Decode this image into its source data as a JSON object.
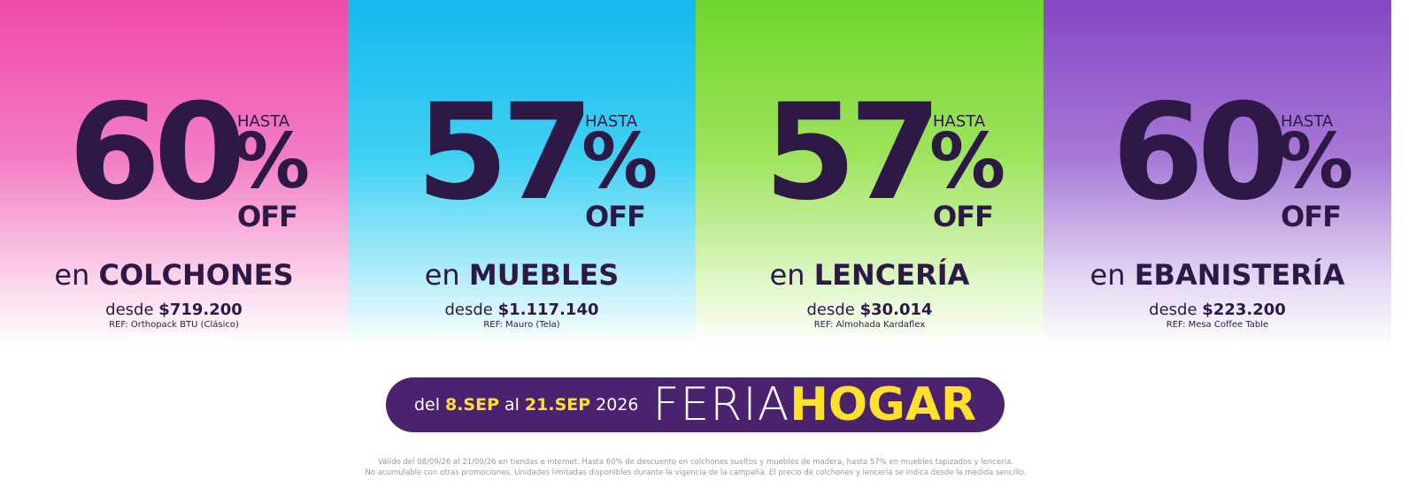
{
  "panels": [
    {
      "hasta": "HASTA",
      "number": "60",
      "percent": "%",
      "off": "OFF",
      "prefix": "en",
      "category": "COLCHONES",
      "desde": "desde",
      "price": "$719.200",
      "ref": "REF: Orthopack BTU (Clásico)"
    },
    {
      "hasta": "HASTA",
      "number": "57",
      "percent": "%",
      "off": "OFF",
      "prefix": "en",
      "category": "MUEBLES",
      "desde": "desde",
      "price": "$1.117.140",
      "ref": "REF: Mauro (Tela)"
    },
    {
      "hasta": "HASTA",
      "number": "57",
      "percent": "%",
      "off": "OFF",
      "prefix": "en",
      "category": "LENCERÍA",
      "desde": "desde",
      "price": "$30.014",
      "ref": "REF: Almohada Kardaflex"
    },
    {
      "hasta": "HASTA",
      "number": "60",
      "percent": "%",
      "off": "OFF",
      "prefix": "en",
      "category": "EBANISTERÍA",
      "desde": "desde",
      "price": "$223.200",
      "ref": "REF: Mesa Coffee Table"
    }
  ],
  "banner": {
    "del": "del",
    "start": "8.SEP",
    "al": "al",
    "end": "21.SEP",
    "year": "2026",
    "feria": "FERIA",
    "hogar": "HOGAR"
  },
  "footer": {
    "lines": [
      "Válido del 08/09/26 al 21/09/26 en tiendas e internet. Hasta 60% de descuento en colchones sueltos y muebles de madera, hasta 57% en muebles tapizados y lencería.",
      "No acumulable con otras promociones. Unidades limitadas disponibles durante la vigencia de la campaña. El precio de colchones y lencería se indica desde la medida sencillo."
    ]
  }
}
